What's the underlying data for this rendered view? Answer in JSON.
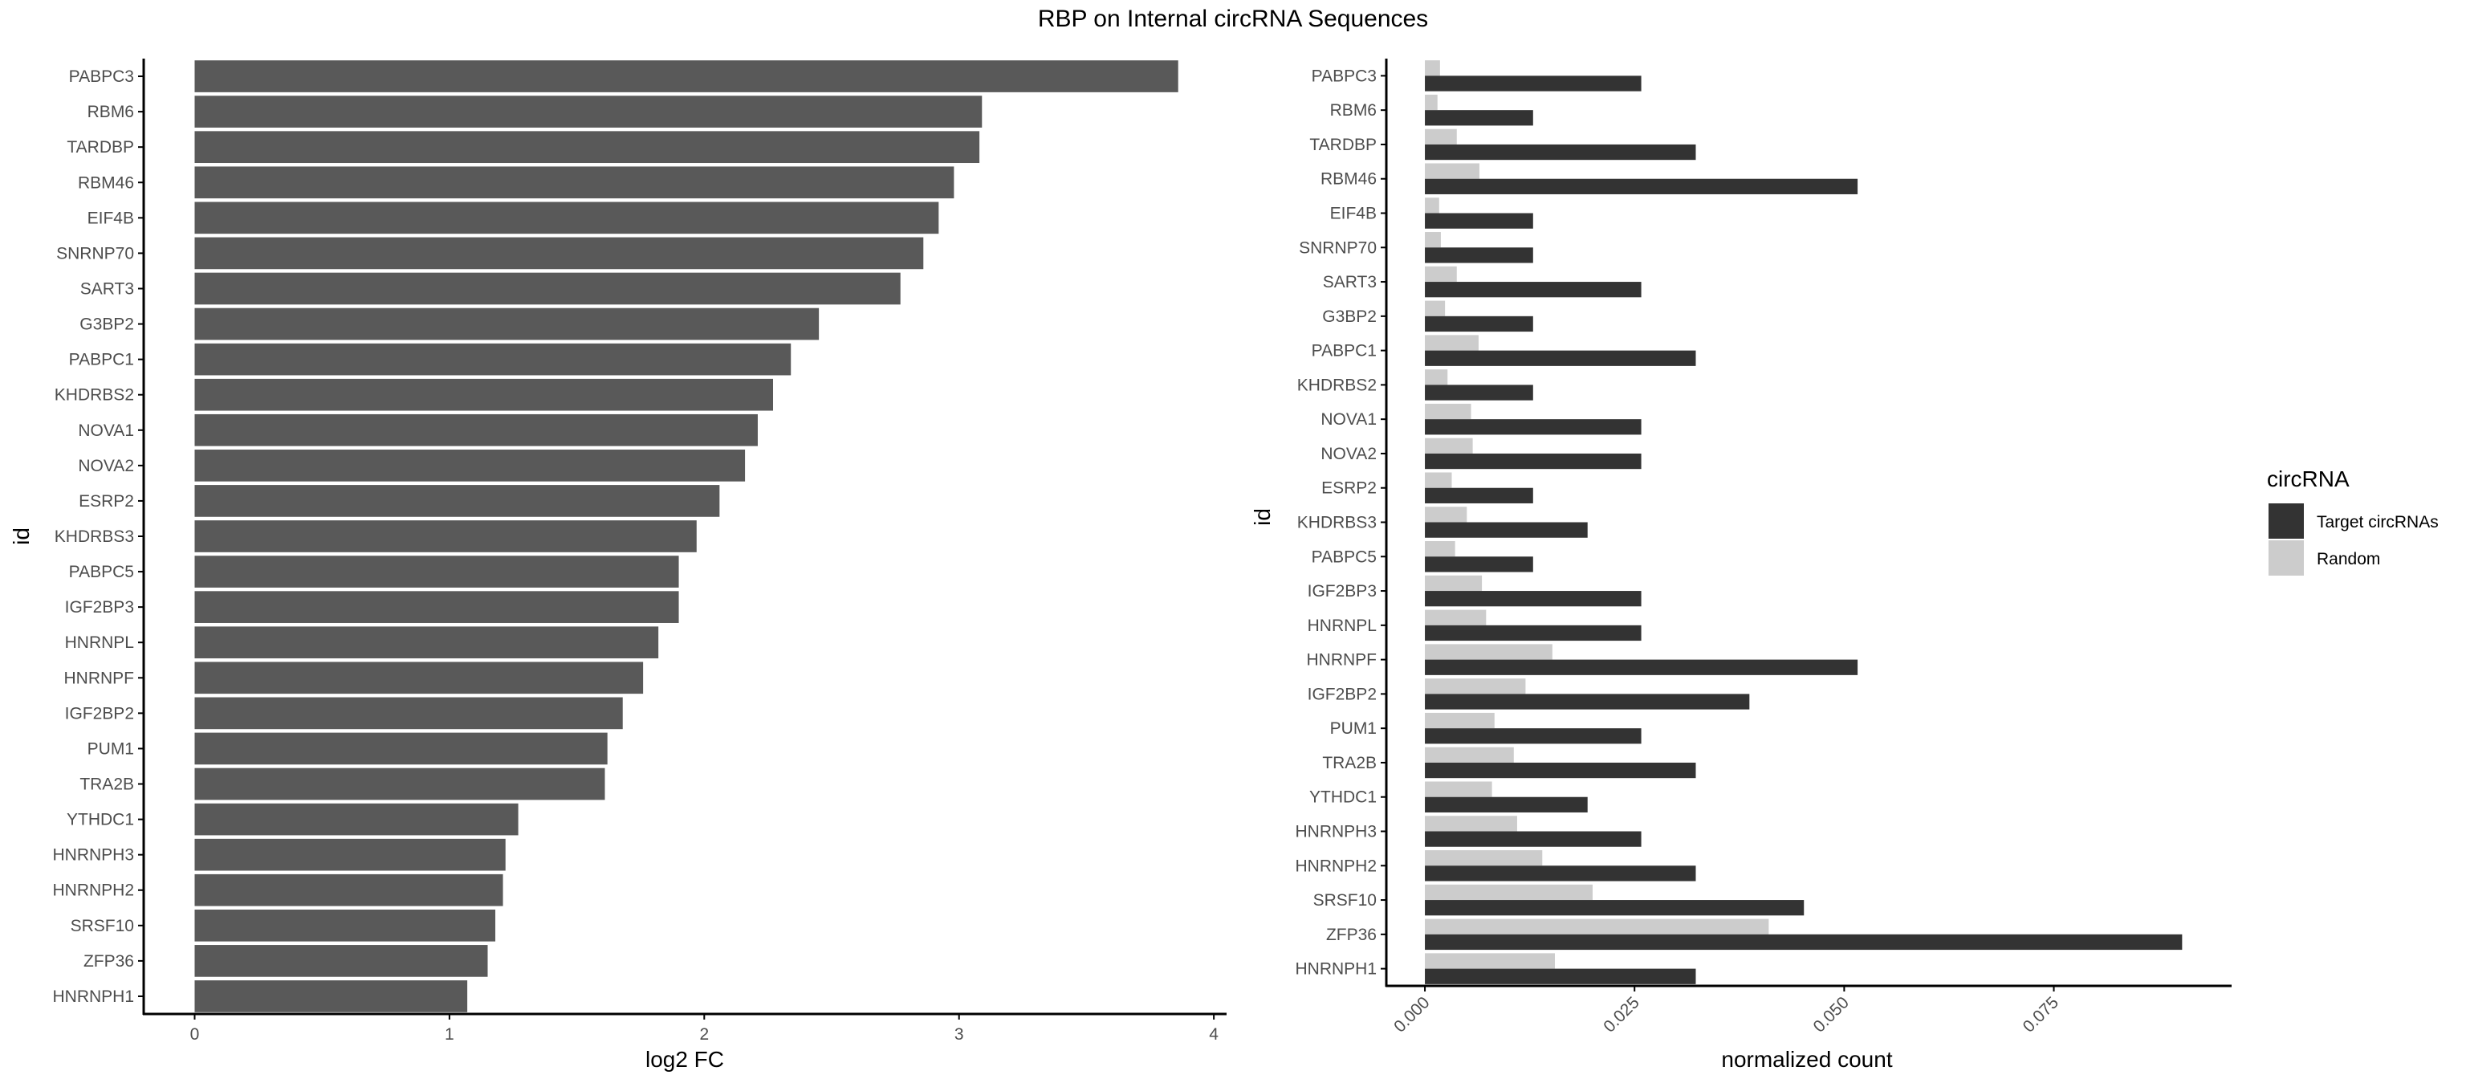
{
  "title": "RBP on Internal circRNA Sequences",
  "colors": {
    "left_bar": "#595959",
    "target": "#333333",
    "random": "#cccccc",
    "axis": "#000000",
    "tick_text": "#4d4d4d"
  },
  "chart_data": [
    {
      "type": "bar",
      "orientation": "horizontal",
      "xlabel": "log2 FC",
      "ylabel": "id",
      "xlim": [
        -0.2,
        4.05
      ],
      "xticks": [
        0,
        1,
        2,
        3,
        4
      ],
      "categories": [
        "PABPC3",
        "RBM6",
        "TARDBP",
        "RBM46",
        "EIF4B",
        "SNRNP70",
        "SART3",
        "G3BP2",
        "PABPC1",
        "KHDRBS2",
        "NOVA1",
        "NOVA2",
        "ESRP2",
        "KHDRBS3",
        "PABPC5",
        "IGF2BP3",
        "HNRNPL",
        "HNRNPF",
        "IGF2BP2",
        "PUM1",
        "TRA2B",
        "YTHDC1",
        "HNRNPH3",
        "HNRNPH2",
        "SRSF10",
        "ZFP36",
        "HNRNPH1"
      ],
      "values": [
        3.86,
        3.09,
        3.08,
        2.98,
        2.92,
        2.86,
        2.77,
        2.45,
        2.34,
        2.27,
        2.21,
        2.16,
        2.06,
        1.97,
        1.9,
        1.9,
        1.82,
        1.76,
        1.68,
        1.62,
        1.61,
        1.27,
        1.22,
        1.21,
        1.18,
        1.15,
        1.07
      ]
    },
    {
      "type": "bar",
      "orientation": "horizontal",
      "xlabel": "normalized count",
      "ylabel": "id",
      "xlim": [
        -0.0046,
        0.0962
      ],
      "xticks": [
        "0.000",
        "0.025",
        "0.050",
        "0.075"
      ],
      "categories": [
        "PABPC3",
        "RBM6",
        "TARDBP",
        "RBM46",
        "EIF4B",
        "SNRNP70",
        "SART3",
        "G3BP2",
        "PABPC1",
        "KHDRBS2",
        "NOVA1",
        "NOVA2",
        "ESRP2",
        "KHDRBS3",
        "PABPC5",
        "IGF2BP3",
        "HNRNPL",
        "HNRNPF",
        "IGF2BP2",
        "PUM1",
        "TRA2B",
        "YTHDC1",
        "HNRNPH3",
        "HNRNPH2",
        "SRSF10",
        "ZFP36",
        "HNRNPH1"
      ],
      "series": [
        {
          "name": "Target circRNAs",
          "values": [
            0.0258,
            0.0129,
            0.0323,
            0.0516,
            0.0129,
            0.0129,
            0.0258,
            0.0129,
            0.0323,
            0.0129,
            0.0258,
            0.0258,
            0.0129,
            0.0194,
            0.0129,
            0.0258,
            0.0258,
            0.0516,
            0.0387,
            0.0258,
            0.0323,
            0.0194,
            0.0258,
            0.0323,
            0.0452,
            0.0903,
            0.0323
          ]
        },
        {
          "name": "Random",
          "values": [
            0.0018,
            0.0015,
            0.0038,
            0.0065,
            0.0017,
            0.0019,
            0.0038,
            0.0024,
            0.0064,
            0.0027,
            0.0055,
            0.0057,
            0.0032,
            0.005,
            0.0036,
            0.0068,
            0.0073,
            0.0152,
            0.012,
            0.0083,
            0.0106,
            0.008,
            0.011,
            0.014,
            0.02,
            0.041,
            0.0155
          ]
        }
      ],
      "legend": {
        "title": "circRNA",
        "position": "right"
      }
    }
  ]
}
